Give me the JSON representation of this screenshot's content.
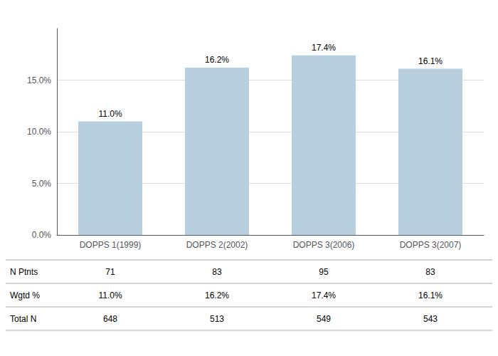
{
  "chart_data": {
    "type": "bar",
    "categories": [
      "DOPPS 1(1999)",
      "DOPPS 2(2002)",
      "DOPPS 3(2006)",
      "DOPPS 3(2007)"
    ],
    "values": [
      11.0,
      16.2,
      17.4,
      16.1
    ],
    "value_labels": [
      "11.0%",
      "16.2%",
      "17.4%",
      "16.1%"
    ],
    "data_labels": true,
    "color": "#b8cfe0",
    "ylim": [
      0,
      20
    ],
    "yticks": [
      {
        "value": 0.0,
        "label": "0.0%"
      },
      {
        "value": 5.0,
        "label": "5.0%"
      },
      {
        "value": 10.0,
        "label": "10.0%"
      },
      {
        "value": 15.0,
        "label": "15.0%"
      }
    ],
    "grid": true,
    "table_rows": [
      {
        "label": "N Ptnts",
        "values": [
          "71",
          "83",
          "95",
          "83"
        ]
      },
      {
        "label": "Wgtd %",
        "values": [
          "11.0%",
          "16.2%",
          "17.4%",
          "16.1%"
        ]
      },
      {
        "label": "Total N",
        "values": [
          "648",
          "513",
          "549",
          "543"
        ]
      }
    ]
  }
}
